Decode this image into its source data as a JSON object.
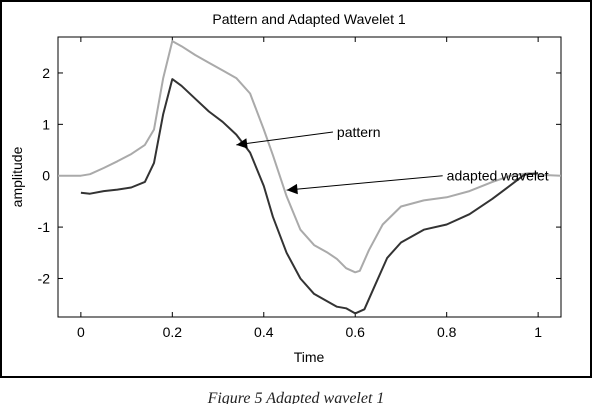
{
  "figure": {
    "caption": "Figure 5 Adapted wavelet 1"
  },
  "chart_data": {
    "type": "line",
    "title": "Pattern and Adapted Wavelet 1",
    "xlabel": "Time",
    "ylabel": "amplitude",
    "xlim": [
      -0.05,
      1.05
    ],
    "ylim": [
      -2.75,
      2.7
    ],
    "xticks": [
      0,
      0.2,
      0.4,
      0.6,
      0.8,
      1
    ],
    "yticks": [
      -2,
      -1,
      0,
      1,
      2
    ],
    "grid": false,
    "colors": {
      "pattern": "#aaaaaa",
      "adapted": "#333333",
      "axes": "#000000"
    },
    "series": [
      {
        "name": "pattern",
        "color": "#aaaaaa",
        "x": [
          -0.05,
          0.0,
          0.02,
          0.05,
          0.08,
          0.11,
          0.14,
          0.16,
          0.18,
          0.2,
          0.22,
          0.25,
          0.28,
          0.31,
          0.34,
          0.37,
          0.4,
          0.42,
          0.45,
          0.48,
          0.51,
          0.54,
          0.56,
          0.58,
          0.6,
          0.61,
          0.63,
          0.66,
          0.7,
          0.75,
          0.8,
          0.85,
          0.9,
          0.94,
          0.98,
          1.0,
          1.05
        ],
        "y": [
          0,
          0,
          0.03,
          0.15,
          0.28,
          0.42,
          0.6,
          0.9,
          1.9,
          2.62,
          2.52,
          2.35,
          2.2,
          2.05,
          1.9,
          1.6,
          0.9,
          0.4,
          -0.4,
          -1.05,
          -1.35,
          -1.5,
          -1.62,
          -1.8,
          -1.88,
          -1.85,
          -1.45,
          -0.95,
          -0.6,
          -0.48,
          -0.42,
          -0.3,
          -0.12,
          0.0,
          0.05,
          0.02,
          0
        ]
      },
      {
        "name": "adapted wavelet",
        "color": "#333333",
        "x": [
          0.0,
          0.02,
          0.05,
          0.08,
          0.11,
          0.14,
          0.16,
          0.18,
          0.2,
          0.22,
          0.25,
          0.28,
          0.31,
          0.34,
          0.37,
          0.4,
          0.42,
          0.45,
          0.48,
          0.51,
          0.54,
          0.56,
          0.58,
          0.6,
          0.62,
          0.64,
          0.67,
          0.7,
          0.75,
          0.8,
          0.85,
          0.9,
          0.93,
          0.97,
          1.0
        ],
        "y": [
          -0.33,
          -0.35,
          -0.3,
          -0.27,
          -0.23,
          -0.12,
          0.25,
          1.2,
          1.88,
          1.75,
          1.5,
          1.25,
          1.05,
          0.8,
          0.45,
          -0.2,
          -0.8,
          -1.5,
          -2.0,
          -2.3,
          -2.45,
          -2.55,
          -2.58,
          -2.68,
          -2.6,
          -2.2,
          -1.6,
          -1.3,
          -1.05,
          -0.95,
          -0.75,
          -0.45,
          -0.25,
          0.02,
          0.05
        ]
      }
    ],
    "annotations": [
      {
        "text": "pattern",
        "x": 0.56,
        "y": 0.85,
        "arrow_to": [
          0.34,
          0.6
        ]
      },
      {
        "text": "adapted wavelet",
        "x": 0.8,
        "y": 0.0,
        "arrow_to": [
          0.45,
          -0.28
        ]
      }
    ]
  }
}
